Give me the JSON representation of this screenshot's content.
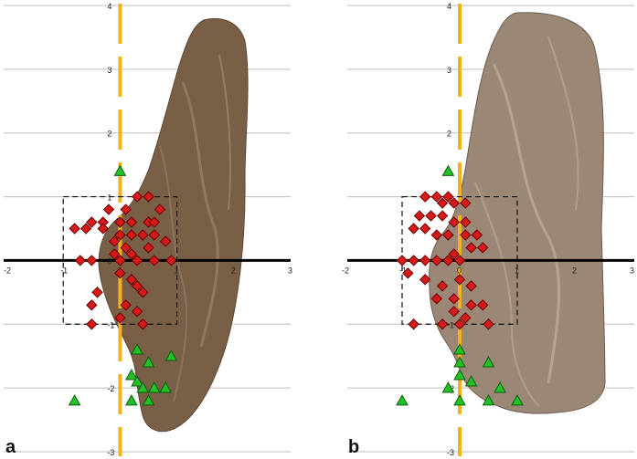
{
  "figure": {
    "panels": [
      {
        "letter": "a"
      },
      {
        "letter": "b"
      }
    ]
  },
  "colors": {
    "zero_axis": "#000000",
    "grid": "#bdbdbd",
    "dashed_line": "#f3b21a",
    "diamond_fill": "#d61a1a",
    "diamond_stroke": "#6a0000",
    "triangle_fill": "#22c12a",
    "triangle_stroke": "#0b5e0b",
    "tissue_dark": "#7a5f47",
    "tissue_light": "#9a8775"
  },
  "chart_data": [
    {
      "type": "scatter",
      "panel": "a",
      "xlim": [
        -2,
        3
      ],
      "ylim": [
        -3,
        4
      ],
      "x_ticks": [
        "-2",
        "-1",
        "0",
        "1",
        "2",
        "3"
      ],
      "y_ticks": [
        "-3",
        "-2",
        "-1",
        "0",
        "1",
        "2",
        "3",
        "4"
      ],
      "grid": "horizontal",
      "vertical_dashed_x": 0,
      "dashed_box": {
        "x": [
          -1,
          1
        ],
        "y": [
          -1,
          1
        ]
      },
      "series": [
        {
          "marker": "diamond",
          "points": [
            [
              -0.2,
              0.8
            ],
            [
              0.1,
              0.8
            ],
            [
              0.3,
              1.0
            ],
            [
              0.5,
              1.0
            ],
            [
              0.7,
              0.8
            ],
            [
              -0.5,
              0.6
            ],
            [
              -0.3,
              0.6
            ],
            [
              0.0,
              0.6
            ],
            [
              0.2,
              0.6
            ],
            [
              0.5,
              0.6
            ],
            [
              0.6,
              0.6
            ],
            [
              -0.8,
              0.5
            ],
            [
              -0.6,
              0.5
            ],
            [
              -0.3,
              0.5
            ],
            [
              0.0,
              0.4
            ],
            [
              0.2,
              0.4
            ],
            [
              0.4,
              0.4
            ],
            [
              0.6,
              0.4
            ],
            [
              -0.1,
              0.3
            ],
            [
              0.1,
              0.2
            ],
            [
              0.5,
              0.2
            ],
            [
              0.8,
              0.3
            ],
            [
              -0.1,
              0.1
            ],
            [
              0.2,
              0.1
            ],
            [
              0.6,
              0.0
            ],
            [
              -0.7,
              0.0
            ],
            [
              -0.5,
              0.0
            ],
            [
              0.0,
              0.0
            ],
            [
              0.3,
              0.0
            ],
            [
              0.9,
              0.0
            ],
            [
              0.0,
              -0.2
            ],
            [
              0.2,
              -0.3
            ],
            [
              0.3,
              -0.4
            ],
            [
              0.4,
              -0.5
            ],
            [
              -0.4,
              -0.5
            ],
            [
              -0.5,
              -0.7
            ],
            [
              0.1,
              -0.7
            ],
            [
              0.3,
              -0.8
            ],
            [
              0.0,
              -0.9
            ],
            [
              -0.5,
              -1.0
            ],
            [
              0.4,
              -1.0
            ]
          ]
        },
        {
          "marker": "triangle",
          "points": [
            [
              0.0,
              1.4
            ],
            [
              0.3,
              -1.4
            ],
            [
              0.2,
              -1.8
            ],
            [
              0.3,
              -1.9
            ],
            [
              0.5,
              -1.6
            ],
            [
              0.9,
              -1.5
            ],
            [
              0.4,
              -2.0
            ],
            [
              0.6,
              -2.0
            ],
            [
              0.8,
              -2.0
            ],
            [
              0.2,
              -2.2
            ],
            [
              0.5,
              -2.2
            ],
            [
              -0.8,
              -2.2
            ]
          ]
        }
      ]
    },
    {
      "type": "scatter",
      "panel": "b",
      "xlim": [
        -2,
        3
      ],
      "ylim": [
        -3,
        4
      ],
      "x_ticks": [
        "-2",
        "-1",
        "0",
        "1",
        "2",
        "3"
      ],
      "y_ticks": [
        "-3",
        "-2",
        "-1",
        "0",
        "1",
        "2",
        "3",
        "4"
      ],
      "grid": "horizontal",
      "vertical_dashed_x": 0,
      "dashed_box": {
        "x": [
          -1,
          1
        ],
        "y": [
          -1,
          1
        ]
      },
      "series": [
        {
          "marker": "diamond",
          "points": [
            [
              -0.6,
              1.0
            ],
            [
              -0.4,
              1.0
            ],
            [
              -0.2,
              1.0
            ],
            [
              -0.1,
              0.9
            ],
            [
              -0.3,
              0.9
            ],
            [
              0.1,
              0.9
            ],
            [
              -0.7,
              0.7
            ],
            [
              -0.5,
              0.7
            ],
            [
              -0.3,
              0.7
            ],
            [
              -0.1,
              0.6
            ],
            [
              0.1,
              0.6
            ],
            [
              -0.8,
              0.5
            ],
            [
              -0.6,
              0.5
            ],
            [
              -0.4,
              0.4
            ],
            [
              -0.2,
              0.4
            ],
            [
              0.1,
              0.4
            ],
            [
              0.3,
              0.4
            ],
            [
              0.2,
              0.2
            ],
            [
              0.4,
              0.2
            ],
            [
              -0.1,
              0.1
            ],
            [
              -1.0,
              0.0
            ],
            [
              -0.8,
              0.0
            ],
            [
              -0.6,
              0.0
            ],
            [
              -0.4,
              0.0
            ],
            [
              -0.2,
              0.0
            ],
            [
              0.0,
              0.0
            ],
            [
              -0.9,
              -0.2
            ],
            [
              -0.6,
              -0.3
            ],
            [
              -0.3,
              -0.4
            ],
            [
              0.0,
              -0.3
            ],
            [
              0.2,
              -0.4
            ],
            [
              -0.4,
              -0.6
            ],
            [
              -0.1,
              -0.6
            ],
            [
              0.2,
              -0.7
            ],
            [
              0.4,
              -0.7
            ],
            [
              -0.1,
              -0.8
            ],
            [
              0.1,
              -0.9
            ],
            [
              -0.8,
              -1.0
            ],
            [
              -0.3,
              -1.0
            ],
            [
              0.0,
              -1.0
            ],
            [
              0.5,
              -1.0
            ]
          ]
        },
        {
          "marker": "triangle",
          "points": [
            [
              -0.2,
              1.4
            ],
            [
              0.0,
              -1.4
            ],
            [
              0.0,
              -1.6
            ],
            [
              0.0,
              -1.8
            ],
            [
              0.2,
              -1.9
            ],
            [
              0.5,
              -1.6
            ],
            [
              -0.2,
              -2.0
            ],
            [
              0.7,
              -2.0
            ],
            [
              0.5,
              -2.2
            ],
            [
              1.0,
              -2.2
            ],
            [
              -1.0,
              -2.2
            ],
            [
              0.0,
              -2.2
            ]
          ]
        }
      ]
    }
  ]
}
